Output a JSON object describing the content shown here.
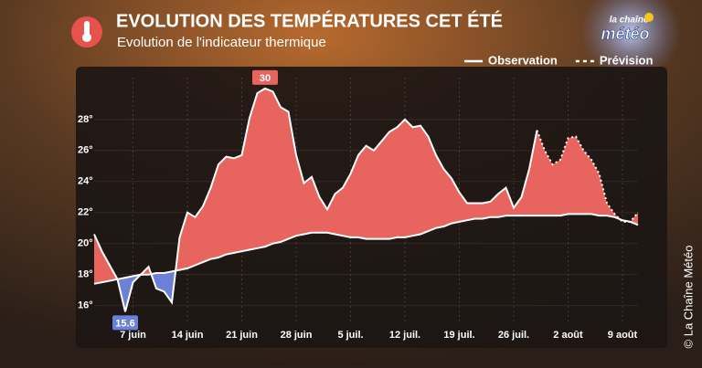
{
  "chart_data": {
    "type": "line",
    "title": "EVOLUTION DES TEMPÉRATURES CET ÉTÉ",
    "subtitle": "Evolution de l'indicateur thermique",
    "categories": [
      null,
      null,
      null,
      null,
      null,
      "7 juin",
      null,
      null,
      null,
      null,
      null,
      null,
      "14 juin",
      null,
      null,
      null,
      null,
      null,
      null,
      "21 juin",
      null,
      null,
      null,
      null,
      null,
      null,
      "28 juin",
      null,
      null,
      null,
      null,
      null,
      null,
      "5 juil.",
      null,
      null,
      null,
      null,
      null,
      null,
      "12 juil.",
      null,
      null,
      null,
      null,
      null,
      null,
      "19 juil.",
      null,
      null,
      null,
      null,
      null,
      null,
      "26 juil.",
      null,
      null,
      null,
      null,
      null,
      null,
      "2 août",
      null,
      null,
      null,
      null,
      null,
      null,
      "9 août",
      null,
      null
    ],
    "series": [
      {
        "name": "Observation",
        "color": "#ffffff",
        "values": [
          20.6,
          19.5,
          18.6,
          17.7,
          15.6,
          17.5,
          18.0,
          18.5,
          17.1,
          16.9,
          16.2,
          20.4,
          22.0,
          21.7,
          22.4,
          23.6,
          25.1,
          25.6,
          25.5,
          25.7,
          28.1,
          29.7,
          30,
          29.8,
          28.8,
          28.5,
          25.7,
          23.9,
          24.3,
          23.0,
          22.2,
          23.2,
          23.6,
          24.5,
          25.7,
          26.3,
          26.0,
          26.6,
          27.2,
          27.5,
          28.0,
          27.5,
          27.6,
          26.9,
          25.7,
          24.8,
          24.2,
          23.3,
          22.6,
          22.6,
          22.6,
          22.7,
          23.2,
          23.6,
          22.3,
          23.0,
          24.8,
          27.3,
          null,
          null,
          null,
          null,
          null,
          null,
          null,
          null,
          null,
          null,
          null,
          null,
          null
        ]
      },
      {
        "name": "Prévision",
        "color": "#ffffff",
        "dashed": true,
        "values": [
          null,
          null,
          null,
          null,
          null,
          null,
          null,
          null,
          null,
          null,
          null,
          null,
          null,
          null,
          null,
          null,
          null,
          null,
          null,
          null,
          null,
          null,
          null,
          null,
          null,
          null,
          null,
          null,
          null,
          null,
          null,
          null,
          null,
          null,
          null,
          null,
          null,
          null,
          null,
          null,
          null,
          null,
          null,
          null,
          null,
          null,
          null,
          null,
          null,
          null,
          null,
          null,
          null,
          null,
          null,
          null,
          null,
          27.3,
          26.0,
          25.1,
          25.4,
          26.8,
          26.9,
          26.0,
          25.4,
          24.5,
          22.6,
          21.9,
          21.4,
          21.4,
          22.0
        ]
      },
      {
        "color": "#ffffff",
        "values": [
          17.4,
          17.5,
          17.6,
          17.7,
          17.8,
          17.9,
          18.0,
          18.0,
          18.1,
          18.1,
          18.2,
          18.3,
          18.4,
          18.6,
          18.8,
          19.0,
          19.1,
          19.3,
          19.4,
          19.5,
          19.6,
          19.7,
          19.8,
          20.0,
          20.1,
          20.3,
          20.5,
          20.6,
          20.7,
          20.7,
          20.7,
          20.6,
          20.5,
          20.4,
          20.4,
          20.3,
          20.3,
          20.3,
          20.3,
          20.4,
          20.4,
          20.5,
          20.6,
          20.8,
          21.0,
          21.1,
          21.3,
          21.4,
          21.5,
          21.6,
          21.6,
          21.7,
          21.7,
          21.8,
          21.8,
          21.8,
          21.8,
          21.8,
          21.8,
          21.8,
          21.8,
          21.9,
          21.9,
          21.9,
          21.9,
          21.8,
          21.8,
          21.7,
          21.5,
          21.4,
          21.2
        ]
      }
    ],
    "above_color": "#e8645f",
    "below_color": "#6b80d6",
    "ylim": [
      14.8,
      30.7
    ],
    "yticks": [
      {
        "value": 16,
        "label": "16°"
      },
      {
        "value": 18,
        "label": "18°"
      },
      {
        "value": 20,
        "label": "20°"
      },
      {
        "value": 22,
        "label": "22°"
      },
      {
        "value": 24,
        "label": "24°"
      },
      {
        "value": 26,
        "label": "26°"
      },
      {
        "value": 28,
        "label": "28°"
      }
    ],
    "grid": true,
    "legend": "top-right"
  },
  "logo": {
    "line1": "la chaîne",
    "line2": "météo"
  },
  "credit": "© La Chaîne Météo"
}
